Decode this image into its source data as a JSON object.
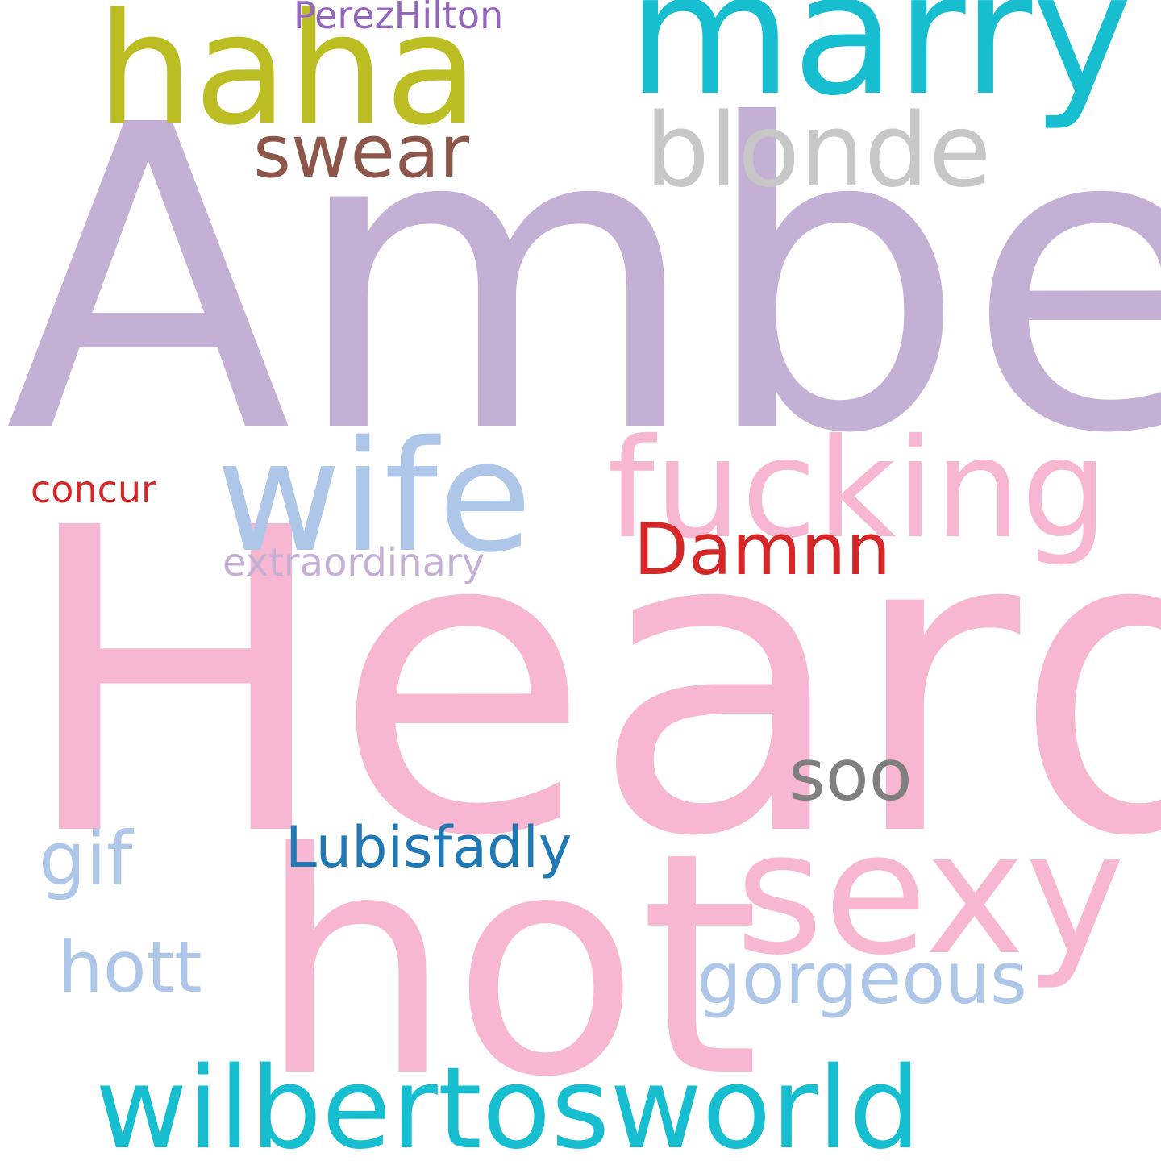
{
  "background": "#ffffff",
  "words": [
    {
      "id": "amber",
      "text": "Amber",
      "color": "#c5b0d5"
    },
    {
      "id": "heard",
      "text": "Heard",
      "color": "#f7b6d2"
    },
    {
      "id": "hot",
      "text": "hot",
      "color": "#f7b6d2"
    },
    {
      "id": "marry",
      "text": "marry",
      "color": "#17becf"
    },
    {
      "id": "haha",
      "text": "haha",
      "color": "#bcbd22"
    },
    {
      "id": "wife",
      "text": "wife",
      "color": "#aec7e8"
    },
    {
      "id": "fucking",
      "text": "fucking",
      "color": "#f7b6d2"
    },
    {
      "id": "sexy",
      "text": "sexy",
      "color": "#f7b6d2"
    },
    {
      "id": "wilbertosworld",
      "text": "wilbertosworld",
      "color": "#17becf"
    },
    {
      "id": "blonde",
      "text": "blonde",
      "color": "#c7c7c7"
    },
    {
      "id": "swear",
      "text": "swear",
      "color": "#8c564b"
    },
    {
      "id": "damnn",
      "text": "Damnn",
      "color": "#d62728"
    },
    {
      "id": "soo",
      "text": "soo",
      "color": "#7f7f7f"
    },
    {
      "id": "gorgeous",
      "text": "gorgeous",
      "color": "#aec7e8"
    },
    {
      "id": "gif",
      "text": "gif",
      "color": "#aec7e8"
    },
    {
      "id": "hott",
      "text": "hott",
      "color": "#aec7e8"
    },
    {
      "id": "lubisfadly",
      "text": "Lubisfadly",
      "color": "#1f77b4"
    },
    {
      "id": "extraordinary",
      "text": "extraordinary",
      "color": "#c5b0d5"
    },
    {
      "id": "concur",
      "text": "concur",
      "color": "#d62728"
    },
    {
      "id": "perezhilton",
      "text": "PerezHilton",
      "color": "#9467bd"
    }
  ]
}
